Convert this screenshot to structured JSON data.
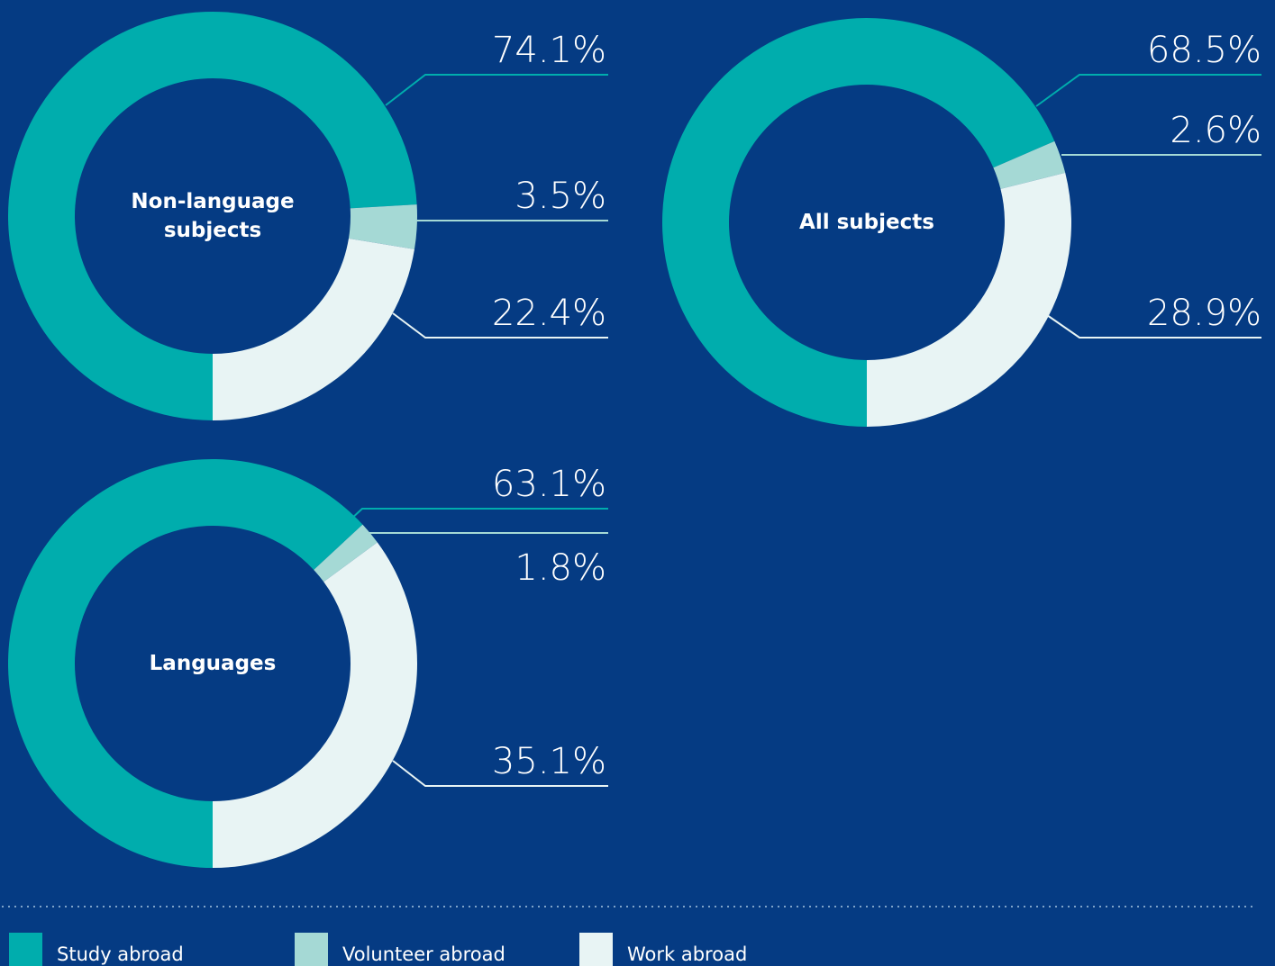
{
  "chart_data": [
    {
      "type": "pie",
      "title": "Non-language subjects",
      "values": [
        74.1,
        3.5,
        22.4
      ],
      "value_labels": [
        "74.1%",
        "3.5%",
        "22.4%"
      ]
    },
    {
      "type": "pie",
      "title": "All subjects",
      "values": [
        68.5,
        2.6,
        28.9
      ],
      "value_labels": [
        "68.5%",
        "2.6%",
        "28.9%"
      ]
    },
    {
      "type": "pie",
      "title": "Languages",
      "values": [
        63.1,
        1.8,
        35.1
      ],
      "value_labels": [
        "63.1%",
        "1.8%",
        "35.1%"
      ]
    }
  ],
  "legend": {
    "categories": [
      "Study abroad",
      "Volunteer abroad",
      "Work abroad"
    ],
    "colors": [
      "#00adad",
      "#a5d9d5",
      "#e8f4f4"
    ]
  }
}
